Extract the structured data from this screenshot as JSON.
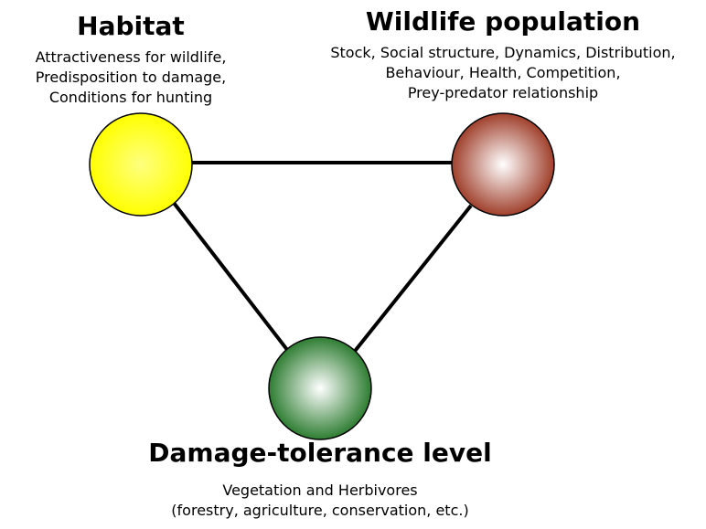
{
  "nodes": [
    {
      "title": "Habitat",
      "lines": [
        "Attractiveness for wildlife,",
        "Predisposition to damage,",
        "Conditions for hunting"
      ]
    },
    {
      "title": "Wildlife population",
      "lines": [
        "Stock, Social structure, Dynamics, Distribution,",
        "Behaviour, Health, Competition,",
        "Prey-predator relationship"
      ]
    },
    {
      "title": "Damage-tolerance level",
      "lines": [
        "Vegetation and Herbivores",
        "(forestry, agriculture, conservation, etc.)"
      ]
    }
  ]
}
